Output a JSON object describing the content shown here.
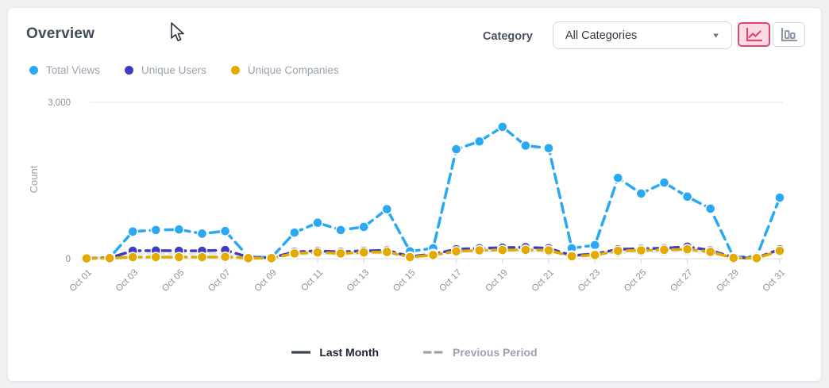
{
  "header": {
    "title": "Overview"
  },
  "controls": {
    "category_label": "Category",
    "category_value": "All Categories",
    "chart_type_toggle": {
      "options": [
        "line",
        "bar"
      ],
      "active": "line",
      "active_color": "#e5446d",
      "active_bg": "#fbdce4"
    }
  },
  "comparison_legend": {
    "current": "Last Month",
    "previous": "Previous Period"
  },
  "chart_data": {
    "type": "line",
    "title": "",
    "xlabel": "",
    "ylabel": "Count",
    "ylim": [
      0,
      3000
    ],
    "yticks": [
      {
        "value": 0,
        "label": "0"
      },
      {
        "value": 3000,
        "label": "3,000"
      }
    ],
    "grid": "gridline at 3000 and baseline at 0 only",
    "legend_position": "top-left",
    "x_tick_note": "only odd days labeled, rotated 45deg",
    "x": [
      "Oct 01",
      "Oct 02",
      "Oct 03",
      "Oct 04",
      "Oct 05",
      "Oct 06",
      "Oct 07",
      "Oct 08",
      "Oct 09",
      "Oct 10",
      "Oct 11",
      "Oct 12",
      "Oct 13",
      "Oct 14",
      "Oct 15",
      "Oct 16",
      "Oct 17",
      "Oct 18",
      "Oct 19",
      "Oct 20",
      "Oct 21",
      "Oct 22",
      "Oct 23",
      "Oct 24",
      "Oct 25",
      "Oct 26",
      "Oct 27",
      "Oct 28",
      "Oct 29",
      "Oct 30",
      "Oct 31"
    ],
    "series": [
      {
        "name": "Total Views",
        "color": "#29a8f3",
        "values": [
          10,
          20,
          520,
          550,
          560,
          480,
          530,
          40,
          20,
          500,
          690,
          550,
          610,
          950,
          140,
          200,
          2100,
          2250,
          2530,
          2170,
          2120,
          200,
          260,
          1550,
          1250,
          1460,
          1190,
          960,
          30,
          40,
          1170
        ]
      },
      {
        "name": "Unique Users",
        "color": "#3f3cc3",
        "values": [
          5,
          15,
          150,
          155,
          150,
          150,
          165,
          30,
          15,
          130,
          150,
          130,
          150,
          160,
          40,
          90,
          180,
          200,
          210,
          220,
          200,
          60,
          90,
          180,
          190,
          200,
          230,
          160,
          20,
          15,
          180
        ]
      },
      {
        "name": "Unique Companies",
        "color": "#e3ab00",
        "values": [
          5,
          10,
          30,
          30,
          30,
          30,
          35,
          10,
          10,
          100,
          120,
          100,
          120,
          130,
          30,
          70,
          140,
          160,
          165,
          170,
          160,
          45,
          70,
          150,
          160,
          170,
          180,
          130,
          15,
          10,
          150
        ]
      }
    ],
    "previous_period": {
      "name": "Previous Period",
      "color": "#e4e7eb",
      "style": "dashed",
      "values": [
        15,
        20,
        90,
        95,
        90,
        90,
        100,
        25,
        20,
        80,
        100,
        85,
        100,
        110,
        35,
        60,
        130,
        140,
        150,
        145,
        135,
        50,
        70,
        120,
        130,
        140,
        150,
        110,
        20,
        15,
        130
      ]
    }
  }
}
